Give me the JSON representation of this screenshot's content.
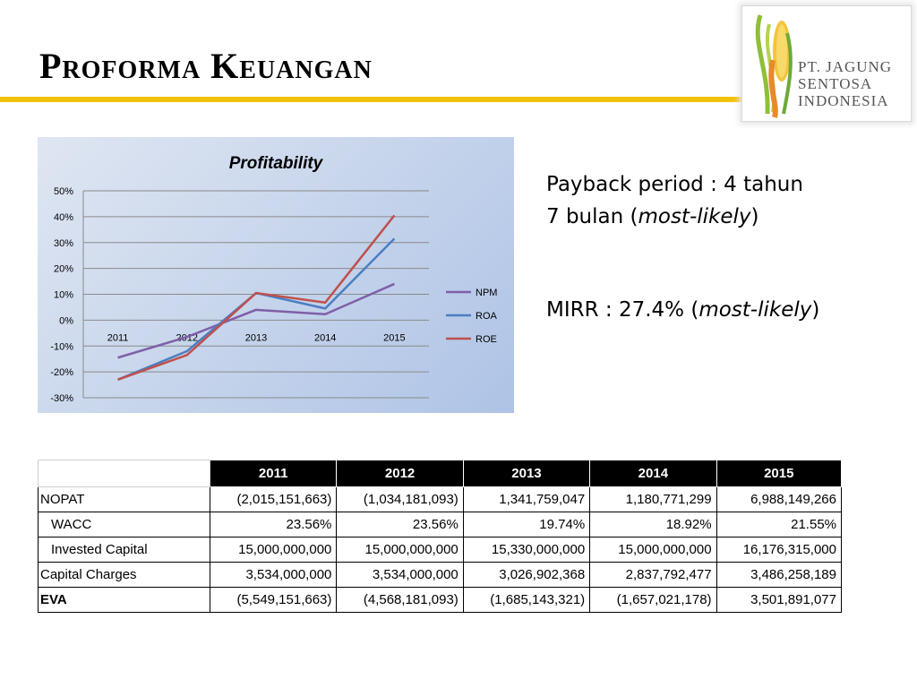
{
  "slide": {
    "title": "Proforma Keuangan"
  },
  "logo": {
    "line1": "PT. JAGUNG",
    "line2": "SENTOSA",
    "line3": "INDONESIA"
  },
  "info": {
    "payback_prefix": "Payback period : 4 tahun",
    "payback_line2": "7 bulan (",
    "payback_italic": "most-likely",
    "payback_close": ")",
    "mirr_prefix": "MIRR : 27.4% (",
    "mirr_italic": "most-likely",
    "mirr_close": ")"
  },
  "chart_data": {
    "type": "line",
    "title": "Profitability",
    "categories": [
      "2011",
      "2012",
      "2013",
      "2014",
      "2015"
    ],
    "ylim": [
      -30,
      50
    ],
    "yticks": [
      "50%",
      "40%",
      "30%",
      "20%",
      "10%",
      "0%",
      "-10%",
      "-20%",
      "-30%"
    ],
    "ytick_values": [
      50,
      40,
      30,
      20,
      10,
      0,
      -10,
      -20,
      -30
    ],
    "grid": true,
    "legend_position": "right",
    "series": [
      {
        "name": "NPM",
        "color": "#7f5fa8",
        "values": [
          -14.5,
          -6.5,
          4,
          2.3,
          14
        ]
      },
      {
        "name": "ROA",
        "color": "#4a7ec2",
        "values": [
          -23,
          -12,
          10.5,
          4.5,
          31.5
        ]
      },
      {
        "name": "ROE",
        "color": "#c0504d",
        "values": [
          -23,
          -13.5,
          10.5,
          6.8,
          40.5
        ]
      }
    ]
  },
  "table": {
    "years": [
      "2011",
      "2012",
      "2013",
      "2014",
      "2015"
    ],
    "rows": [
      {
        "label": "NOPAT",
        "values": [
          "(2,015,151,663)",
          "(1,034,181,093)",
          "1,341,759,047",
          "1,180,771,299",
          "6,988,149,266"
        ]
      },
      {
        "label": "WACC",
        "values": [
          "23.56%",
          "23.56%",
          "19.74%",
          "18.92%",
          "21.55%"
        ]
      },
      {
        "label": "Invested Capital",
        "values": [
          "15,000,000,000",
          "15,000,000,000",
          "15,330,000,000",
          "15,000,000,000",
          "16,176,315,000"
        ]
      },
      {
        "label": "Capital Charges",
        "values": [
          "3,534,000,000",
          "3,534,000,000",
          "3,026,902,368",
          "2,837,792,477",
          "3,486,258,189"
        ]
      },
      {
        "label": "EVA",
        "values": [
          "(5,549,151,663)",
          "(4,568,181,093)",
          "(1,685,143,321)",
          "(1,657,021,178)",
          "3,501,891,077"
        ]
      }
    ]
  }
}
